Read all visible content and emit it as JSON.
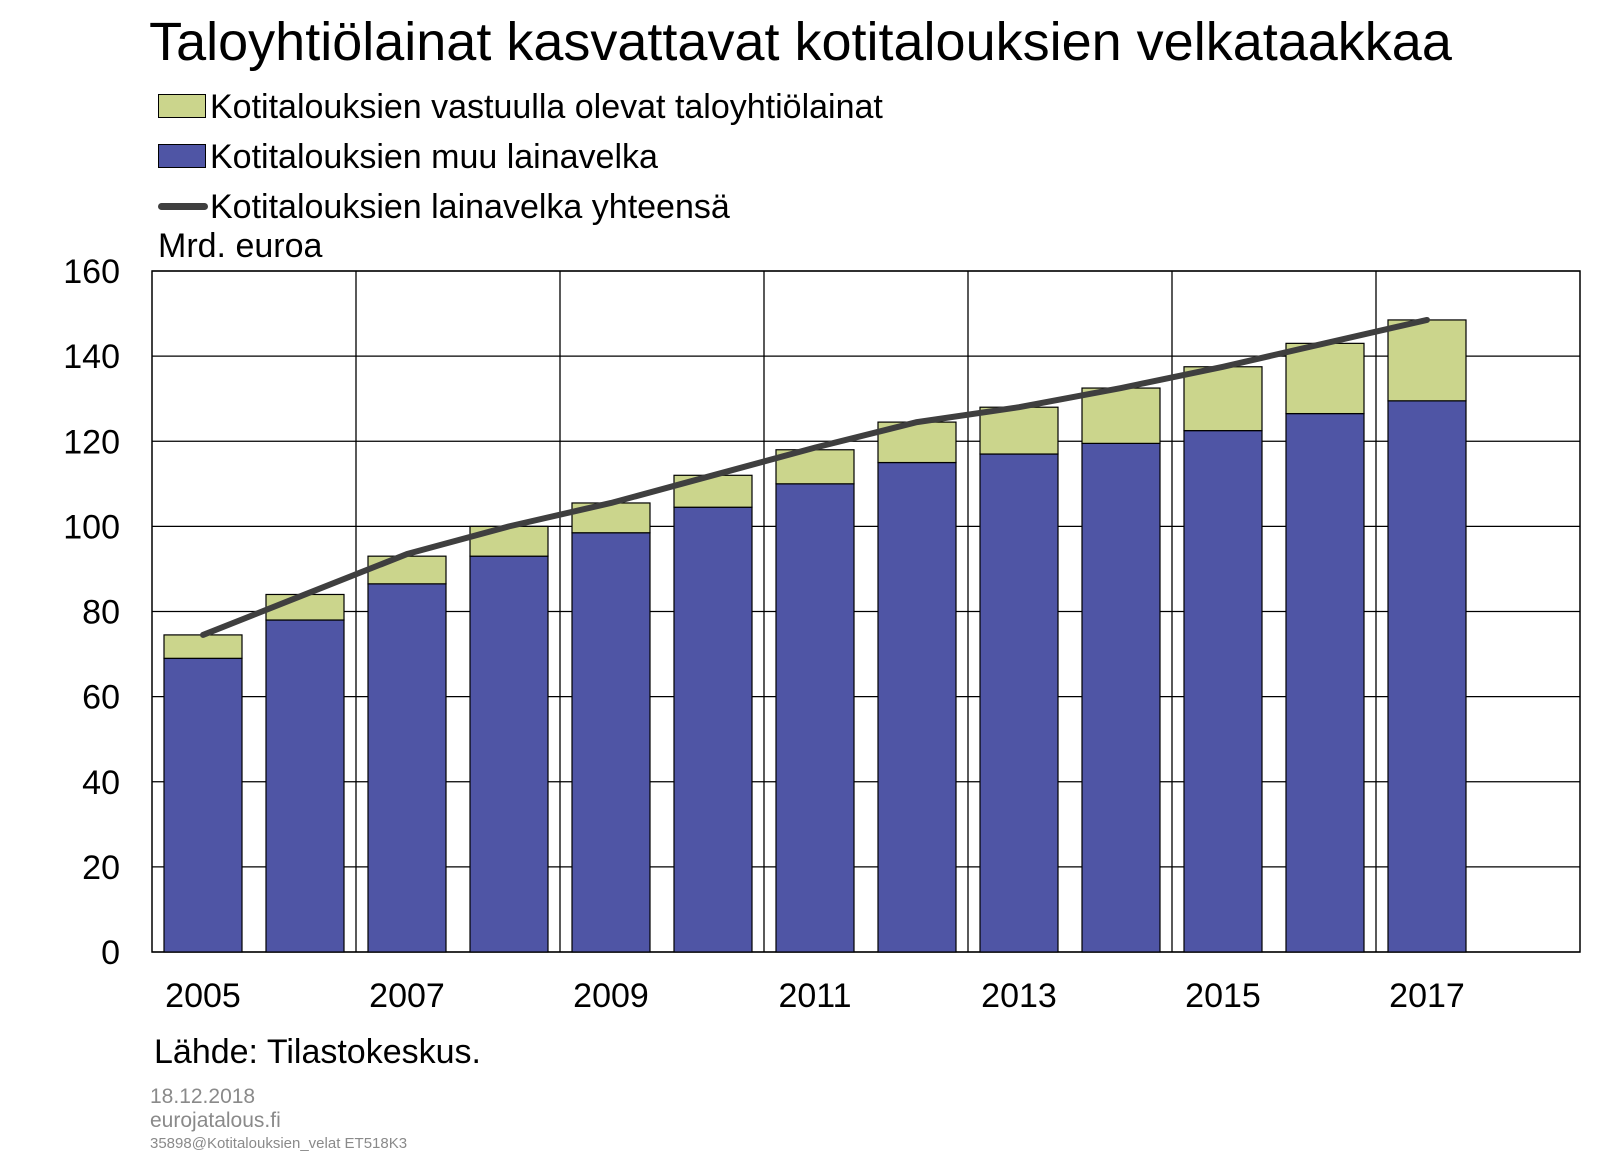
{
  "chart_data": {
    "type": "bar",
    "title": "Taloyhtiölainat kasvattavat kotitalouksien velkataakkaa",
    "unit_label": "Mrd. euroa",
    "x": [
      "2005",
      "2006",
      "2007",
      "2008",
      "2009",
      "2010",
      "2011",
      "2012",
      "2013",
      "2014",
      "2015",
      "2016",
      "2017"
    ],
    "xtick_labels": [
      "2005",
      "2007",
      "2009",
      "2011",
      "2013",
      "2015",
      "2017"
    ],
    "ytick_labels": [
      "0",
      "20",
      "40",
      "60",
      "80",
      "100",
      "120",
      "140",
      "160"
    ],
    "ylim": [
      0,
      160
    ],
    "stacked": true,
    "grid": true,
    "legend_position": "top-left",
    "series": [
      {
        "name": "Kotitalouksien muu lainavelka",
        "kind": "bar",
        "color": "#4f55a5",
        "values": [
          69,
          78,
          86.5,
          93,
          98.5,
          104.5,
          110,
          115,
          117,
          119.5,
          122.5,
          126.5,
          129.5
        ]
      },
      {
        "name": "Kotitalouksien vastuulla olevat taloyhtiölainat",
        "kind": "bar",
        "color": "#cbd58c",
        "values": [
          5.5,
          6,
          6.5,
          7,
          7,
          7.5,
          8,
          9.5,
          11,
          13,
          15,
          16.5,
          19
        ]
      },
      {
        "name": "Kotitalouksien lainavelka yhteensä",
        "kind": "line",
        "color": "#3f3f3f",
        "values": [
          74.5,
          84,
          93.5,
          100,
          105.5,
          112,
          118.5,
          124.5,
          128,
          132.5,
          137.5,
          143,
          148.5
        ]
      }
    ],
    "source": "Lähde: Tilastokeskus."
  },
  "footer": {
    "date": "18.12.2018",
    "site": "eurojatalous.fi",
    "code": "35898@Kotitalouksien_velat  ET518K3"
  }
}
